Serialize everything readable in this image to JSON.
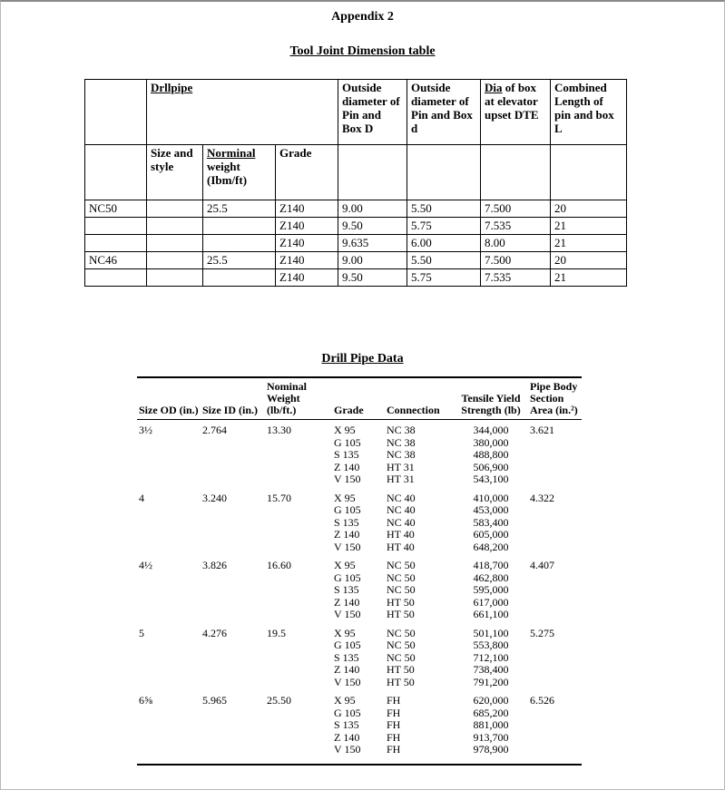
{
  "page": {
    "appendix_title": "Appendix 2",
    "tool_joint_title": "Tool Joint Dimension table",
    "drill_pipe_title": "Drill Pipe Data"
  },
  "tool_joint_table": {
    "header_row1": {
      "drllpipe": "Drllpipe",
      "od_pin_box_D": "Outside diameter of Pin and Box D",
      "od_pin_box_d": "Outside diameter of Pin and Box d",
      "dia_word": "Dia",
      "dia_rest": "of box at elevator upset DTE",
      "combined_length": "Combined Length of pin and box L"
    },
    "header_row2": {
      "size_and_style": "Size and style",
      "norminal_word": "Norminal",
      "weight_rest": "weight (Ibm/ft)",
      "grade": "Grade"
    },
    "rows": [
      [
        "NC50",
        "",
        "25.5",
        "Z140",
        "9.00",
        "5.50",
        "7.500",
        "20"
      ],
      [
        "",
        "",
        "",
        "Z140",
        "9.50",
        "5.75",
        "7.535",
        "21"
      ],
      [
        "",
        "",
        "",
        "Z140",
        "9.635",
        "6.00",
        "8.00",
        "21"
      ],
      [
        "NC46",
        "",
        "25.5",
        "Z140",
        "9.00",
        "5.50",
        "7.500",
        "20"
      ],
      [
        "",
        "",
        "",
        "Z140",
        "9.50",
        "5.75",
        "7.535",
        "21"
      ]
    ]
  },
  "drill_pipe_table": {
    "columns": [
      "Size OD (in.)",
      "Size ID (in.)",
      "Nominal Weight (lb/ft.)",
      "Grade",
      "Connection",
      "Tensile Yield Strength (lb)",
      "Pipe Body Section Area (in.²)"
    ],
    "groups": [
      {
        "size_od": "3½",
        "size_id": "2.764",
        "nominal_weight": "13.30",
        "pipe_body_area": "3.621",
        "rows": [
          {
            "grade": "X 95",
            "connection": "NC 38",
            "strength": "344,000"
          },
          {
            "grade": "G 105",
            "connection": "NC 38",
            "strength": "380,000"
          },
          {
            "grade": "S 135",
            "connection": "NC 38",
            "strength": "488,800"
          },
          {
            "grade": "Z 140",
            "connection": "HT 31",
            "strength": "506,900"
          },
          {
            "grade": "V 150",
            "connection": "HT 31",
            "strength": "543,100"
          }
        ]
      },
      {
        "size_od": "4",
        "size_id": "3.240",
        "nominal_weight": "15.70",
        "pipe_body_area": "4.322",
        "rows": [
          {
            "grade": "X 95",
            "connection": "NC 40",
            "strength": "410,000"
          },
          {
            "grade": "G 105",
            "connection": "NC 40",
            "strength": "453,000"
          },
          {
            "grade": "S 135",
            "connection": "NC 40",
            "strength": "583,400"
          },
          {
            "grade": "Z 140",
            "connection": "HT 40",
            "strength": "605,000"
          },
          {
            "grade": "V 150",
            "connection": "HT 40",
            "strength": "648,200"
          }
        ]
      },
      {
        "size_od": "4½",
        "size_id": "3.826",
        "nominal_weight": "16.60",
        "pipe_body_area": "4.407",
        "rows": [
          {
            "grade": "X 95",
            "connection": "NC 50",
            "strength": "418,700"
          },
          {
            "grade": "G 105",
            "connection": "NC 50",
            "strength": "462,800"
          },
          {
            "grade": "S 135",
            "connection": "NC 50",
            "strength": "595,000"
          },
          {
            "grade": "Z 140",
            "connection": "HT 50",
            "strength": "617,000"
          },
          {
            "grade": "V 150",
            "connection": "HT 50",
            "strength": "661,100"
          }
        ]
      },
      {
        "size_od": "5",
        "size_id": "4.276",
        "nominal_weight": "19.5",
        "pipe_body_area": "5.275",
        "rows": [
          {
            "grade": "X 95",
            "connection": "NC 50",
            "strength": "501,100"
          },
          {
            "grade": "G 105",
            "connection": "NC 50",
            "strength": "553,800"
          },
          {
            "grade": "S 135",
            "connection": "NC 50",
            "strength": "712,100"
          },
          {
            "grade": "Z 140",
            "connection": "HT 50",
            "strength": "738,400"
          },
          {
            "grade": "V 150",
            "connection": "HT 50",
            "strength": "791,200"
          }
        ]
      },
      {
        "size_od": "6⅝",
        "size_id": "5.965",
        "nominal_weight": "25.50",
        "pipe_body_area": "6.526",
        "rows": [
          {
            "grade": "X 95",
            "connection": "FH",
            "strength": "620,000"
          },
          {
            "grade": "G 105",
            "connection": "FH",
            "strength": "685,200"
          },
          {
            "grade": "S 135",
            "connection": "FH",
            "strength": "881,000"
          },
          {
            "grade": "Z 140",
            "connection": "FH",
            "strength": "913,700"
          },
          {
            "grade": "V 150",
            "connection": "FH",
            "strength": "978,900"
          }
        ]
      }
    ]
  }
}
